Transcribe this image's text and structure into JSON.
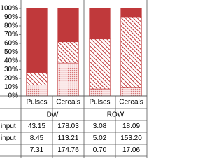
{
  "chart_data": {
    "type": "bar",
    "stacked_percent": true,
    "categories": [
      "Pulses",
      "Cereals",
      "Pulses",
      "Cereals"
    ],
    "groups": [
      "DW",
      "ROW"
    ],
    "series": [
      {
        "name": "input",
        "color": "#c0393b",
        "pattern": "solid",
        "values": [
          43.15,
          178.03,
          3.08,
          18.09
        ],
        "value_labels": [
          "43.15",
          "178.03",
          "3.08",
          "18.09"
        ]
      },
      {
        "name": "input",
        "color": "#c0393b",
        "pattern": "hatch",
        "values": [
          8.45,
          113.21,
          5.02,
          153.2
        ],
        "value_labels": [
          "8.45",
          "113.21",
          "5.02",
          "153.20"
        ]
      },
      {
        "name": null,
        "color": "#d77a7b",
        "pattern": "dots",
        "values": [
          7.31,
          174.76,
          0.7,
          17.06
        ],
        "value_labels": [
          "7.31",
          "174.76",
          "0.70",
          "17.06"
        ]
      }
    ],
    "ylim": [
      0,
      100
    ],
    "yticks": [
      {
        "value": 0,
        "label": "0%"
      },
      {
        "value": 10,
        "label": "10%"
      },
      {
        "value": 20,
        "label": "20%"
      },
      {
        "value": 30,
        "label": "30%"
      },
      {
        "value": 40,
        "label": "40%"
      },
      {
        "value": 50,
        "label": "50%"
      },
      {
        "value": 60,
        "label": "60%"
      },
      {
        "value": 70,
        "label": "70%"
      },
      {
        "value": 80,
        "label": "80%"
      },
      {
        "value": 90,
        "label": "90%"
      },
      {
        "value": 100,
        "label": "100%"
      }
    ]
  }
}
